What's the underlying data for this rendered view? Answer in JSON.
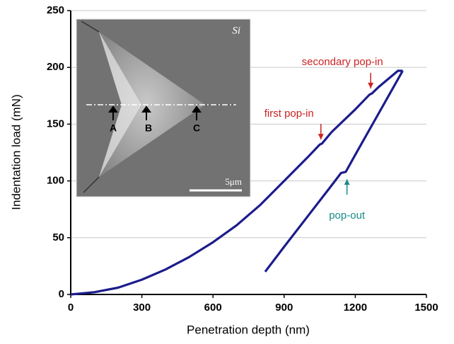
{
  "chart_data": {
    "type": "line",
    "x_label": "Penetration depth (nm)",
    "y_label": "Indentation load (mN)",
    "xlim": [
      0,
      1500
    ],
    "xticks": [
      0,
      300,
      600,
      900,
      1200,
      1500
    ],
    "ylim": [
      0,
      250
    ],
    "yticks": [
      0,
      50,
      100,
      150,
      200,
      250
    ],
    "grid": true,
    "series": [
      {
        "color": "#1c1c8c",
        "x": [
          0,
          100,
          200,
          300,
          400,
          500,
          600,
          700,
          800,
          900,
          1000,
          1050,
          1060,
          1100,
          1200,
          1260,
          1270,
          1300,
          1380,
          1400
        ],
        "values": [
          0,
          2,
          6,
          13,
          22,
          33,
          46,
          61,
          79,
          100,
          121,
          132,
          133,
          143,
          163,
          176,
          177,
          183,
          197,
          197
        ]
      },
      {
        "color": "#1c1c8c",
        "x": [
          1400,
          1300,
          1200,
          1160,
          1140,
          1100,
          1000,
          900,
          820
        ],
        "values": [
          197,
          160,
          123,
          108,
          107,
          96,
          69,
          42,
          20
        ]
      }
    ],
    "annotations": [
      {
        "text": "secondary pop-in",
        "x": 1265,
        "y": 179,
        "color": "#cc2222"
      },
      {
        "text": "first pop-in",
        "x": 1055,
        "y": 134,
        "color": "#cc2222"
      },
      {
        "text": "pop-out",
        "x": 1165,
        "y": 104,
        "color": "#1a8a8a"
      }
    ],
    "inset": {
      "label": "Si",
      "markers": [
        "A",
        "B",
        "C"
      ],
      "scale_bar": "5μm"
    }
  }
}
